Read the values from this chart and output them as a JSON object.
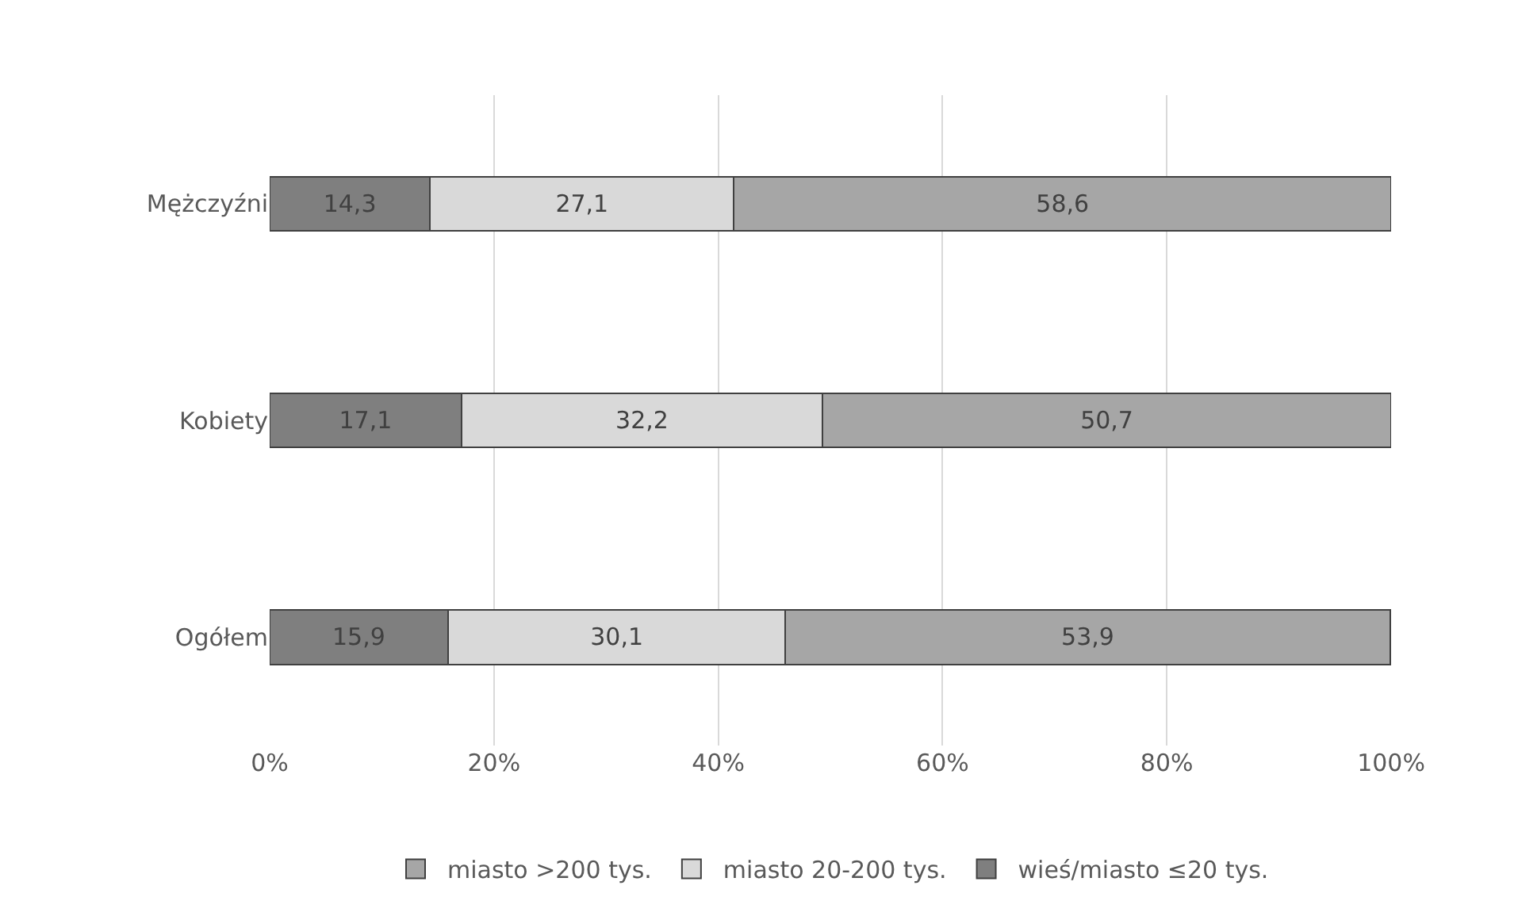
{
  "chart_data": {
    "type": "bar",
    "orientation": "horizontal",
    "stacked": true,
    "categories": [
      "Mężczyźni",
      "Kobiety",
      "Ogółem"
    ],
    "series": [
      {
        "name": "wieś/miasto ≤20 tys.",
        "color": "#7f7f7f",
        "values": [
          14.3,
          17.1,
          15.9
        ],
        "value_labels": [
          "14,3",
          "17,1",
          "15,9"
        ]
      },
      {
        "name": "miasto 20-200 tys.",
        "color": "#d9d9d9",
        "values": [
          27.1,
          32.2,
          30.1
        ],
        "value_labels": [
          "27,1",
          "32,2",
          "30,1"
        ]
      },
      {
        "name": "miasto >200 tys.",
        "color": "#a6a6a6",
        "values": [
          58.6,
          50.7,
          53.9
        ],
        "value_labels": [
          "58,6",
          "50,7",
          "53,9"
        ]
      }
    ],
    "xlim": [
      0,
      100
    ],
    "xticks": [
      {
        "value": 0,
        "label": "0%"
      },
      {
        "value": 20,
        "label": "20%"
      },
      {
        "value": 40,
        "label": "40%"
      },
      {
        "value": 60,
        "label": "60%"
      },
      {
        "value": 80,
        "label": "80%"
      },
      {
        "value": 100,
        "label": "100%"
      }
    ],
    "grid": "x",
    "legend": "bottom"
  }
}
